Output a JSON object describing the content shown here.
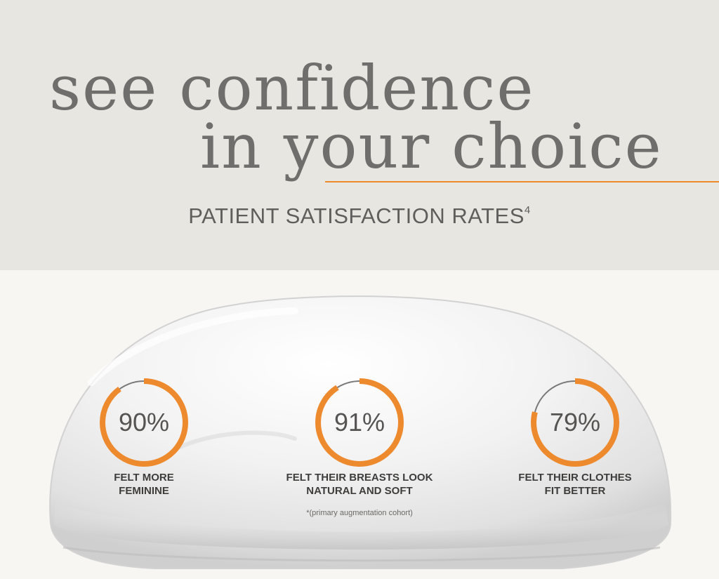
{
  "headline": {
    "line1": "see confidence",
    "line2": "in your choice"
  },
  "subtitle": {
    "text": "PATIENT SATISFACTION RATES",
    "footnote_mark": "4"
  },
  "colors": {
    "accent": "#ee8a2e",
    "ring_track": "#7a7a7a",
    "headline": "#6f6e6c"
  },
  "stats": [
    {
      "value": "90%",
      "percent": 90,
      "label_line1": "FELT MORE",
      "label_line2": "FEMININE"
    },
    {
      "value": "91%",
      "percent": 91,
      "label_line1": "FELT THEIR BREASTS LOOK",
      "label_line2": "NATURAL AND SOFT"
    },
    {
      "value": "79%",
      "percent": 79,
      "label_line1": "FELT THEIR CLOTHES",
      "label_line2": "FIT BETTER"
    }
  ],
  "footnote": "*(primary augmentation cohort)"
}
